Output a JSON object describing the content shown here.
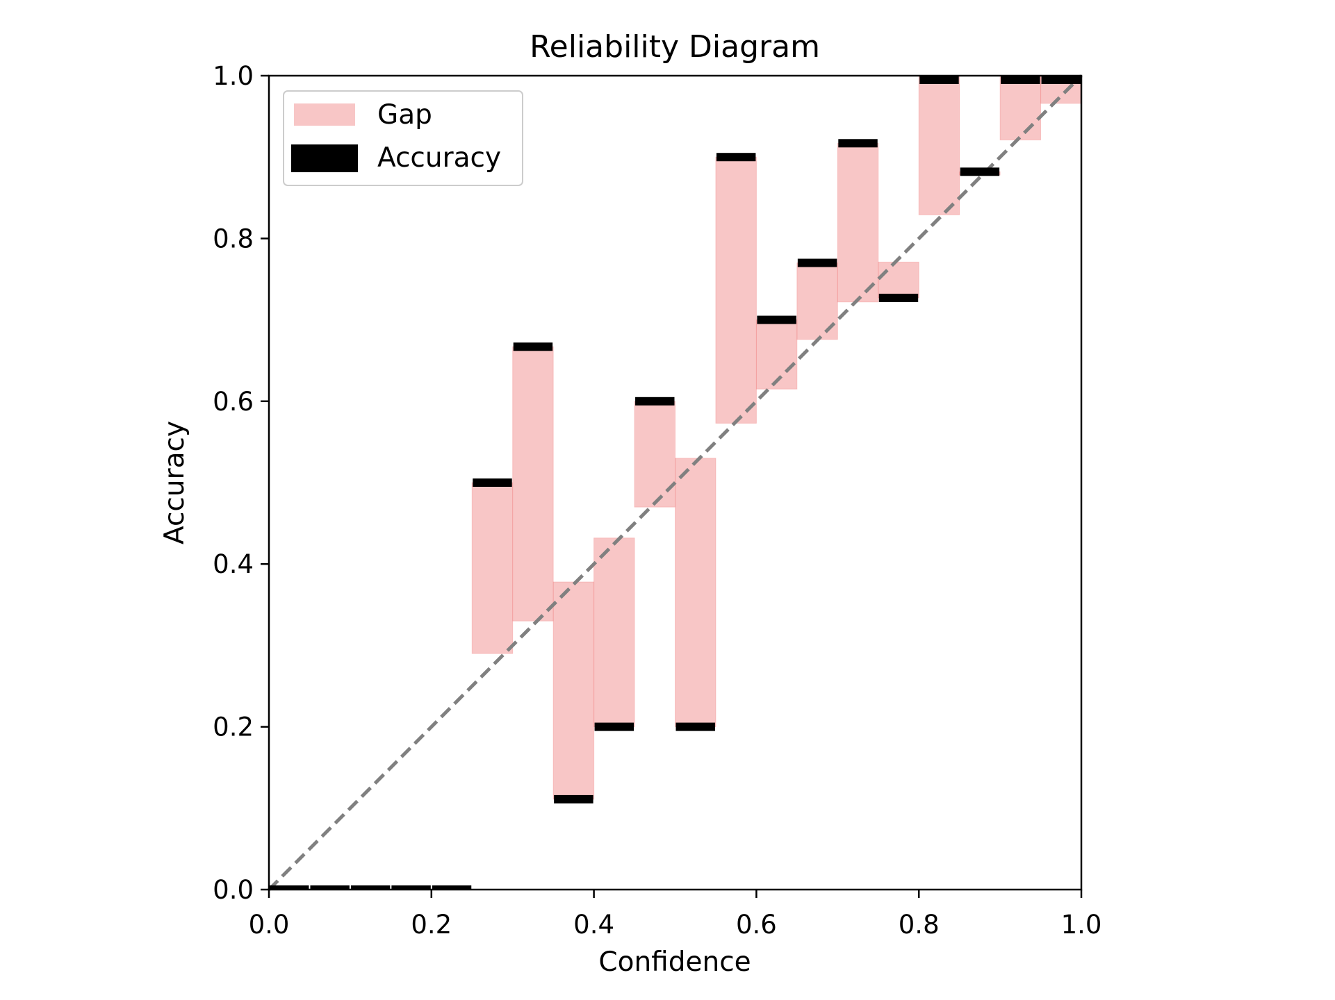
{
  "chart_data": {
    "type": "bar",
    "title": "Reliability Diagram",
    "xlabel": "Confidence",
    "ylabel": "Accuracy",
    "xlim": [
      0.0,
      1.0
    ],
    "ylim": [
      0.0,
      1.0
    ],
    "xticks": [
      "0.0",
      "0.2",
      "0.4",
      "0.6",
      "0.8",
      "1.0"
    ],
    "yticks": [
      "0.0",
      "0.2",
      "0.4",
      "0.6",
      "0.8",
      "1.0"
    ],
    "grid": false,
    "legend": {
      "position": "top-left",
      "entries": [
        "Gap",
        "Accuracy"
      ]
    },
    "reference_line": {
      "from": [
        0,
        0
      ],
      "to": [
        1,
        1
      ],
      "style": "dashed",
      "color": "#808080"
    },
    "bin_width": 0.05,
    "bins": [
      {
        "left": 0.0,
        "accuracy": 0.0,
        "confidence": null
      },
      {
        "left": 0.05,
        "accuracy": 0.0,
        "confidence": null
      },
      {
        "left": 0.1,
        "accuracy": 0.0,
        "confidence": null
      },
      {
        "left": 0.15,
        "accuracy": 0.0,
        "confidence": null
      },
      {
        "left": 0.2,
        "accuracy": 0.0,
        "confidence": null
      },
      {
        "left": 0.25,
        "accuracy": 0.5,
        "confidence": 0.29
      },
      {
        "left": 0.3,
        "accuracy": 0.667,
        "confidence": 0.33
      },
      {
        "left": 0.35,
        "accuracy": 0.111,
        "confidence": 0.378
      },
      {
        "left": 0.4,
        "accuracy": 0.2,
        "confidence": 0.432
      },
      {
        "left": 0.45,
        "accuracy": 0.6,
        "confidence": 0.47
      },
      {
        "left": 0.5,
        "accuracy": 0.2,
        "confidence": 0.53
      },
      {
        "left": 0.55,
        "accuracy": 0.9,
        "confidence": 0.573
      },
      {
        "left": 0.6,
        "accuracy": 0.7,
        "confidence": 0.615
      },
      {
        "left": 0.65,
        "accuracy": 0.77,
        "confidence": 0.676
      },
      {
        "left": 0.7,
        "accuracy": 0.917,
        "confidence": 0.722
      },
      {
        "left": 0.75,
        "accuracy": 0.727,
        "confidence": 0.771
      },
      {
        "left": 0.8,
        "accuracy": 1.0,
        "confidence": 0.829
      },
      {
        "left": 0.85,
        "accuracy": 0.882,
        "confidence": 0.878
      },
      {
        "left": 0.9,
        "accuracy": 1.0,
        "confidence": 0.921
      },
      {
        "left": 0.95,
        "accuracy": 1.0,
        "confidence": 0.966
      }
    ],
    "colors": {
      "gap_fill": "#f08080",
      "gap_opacity": 0.45,
      "accuracy": "#000000",
      "reference": "#808080"
    }
  }
}
